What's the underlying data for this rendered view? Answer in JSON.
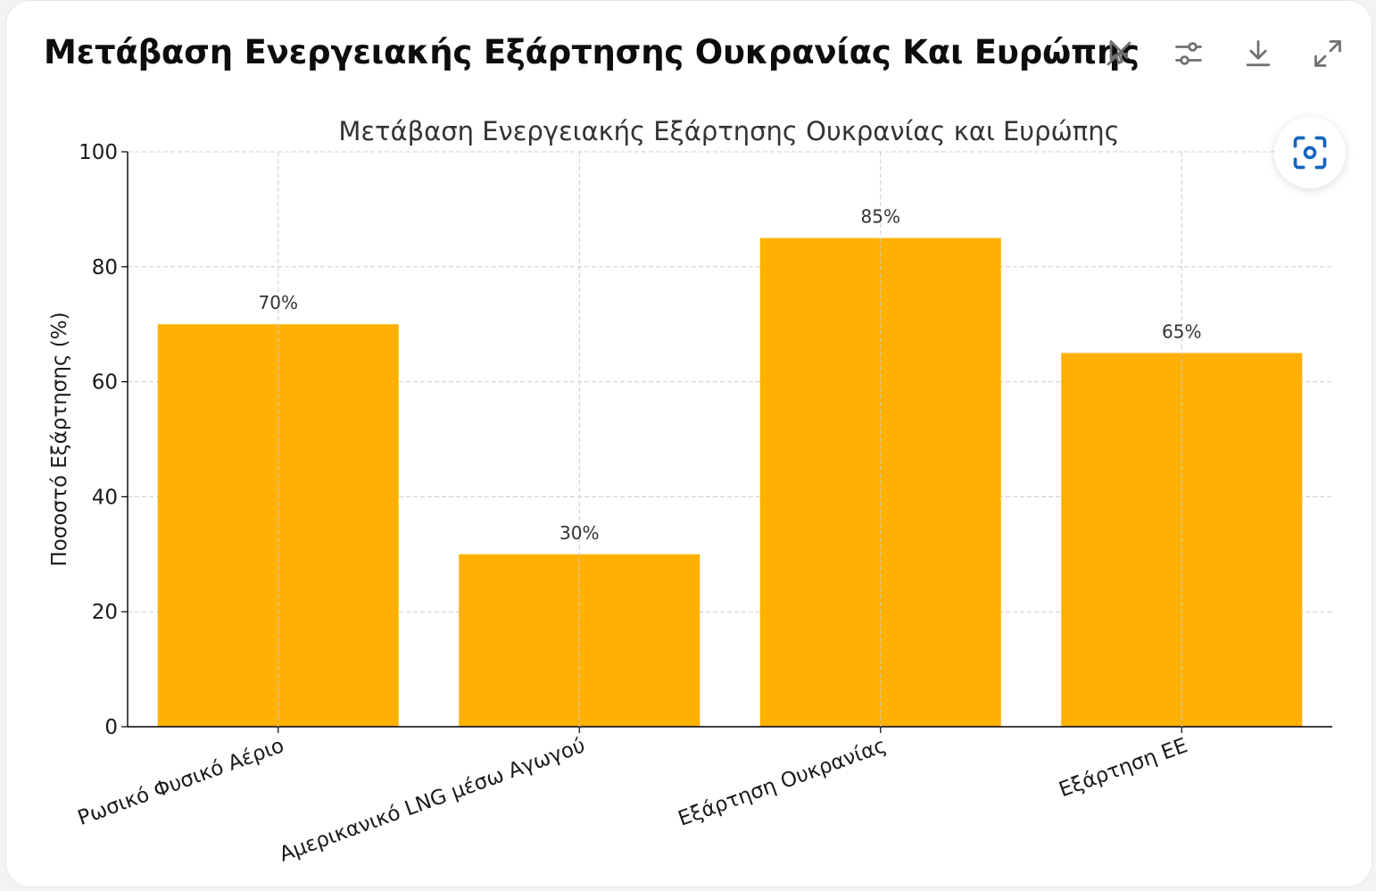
{
  "header": {
    "title": "Μετάβαση Ενεργειακής Εξάρτησης Ουκρανίας Και Ευρώπης"
  },
  "toolbar": {
    "icons": [
      "disable-interactive-icon",
      "settings-sliders-icon",
      "download-icon",
      "expand-icon"
    ]
  },
  "focus_icon": "screenshot-focus-icon",
  "colors": {
    "bar": "#FFB000",
    "grid": "#cccccc",
    "axis": "#000000",
    "accent": "#1565c0",
    "icon": "#707070"
  },
  "chart_data": {
    "type": "bar",
    "title": "Μετάβαση Ενεργειακής Εξάρτησης Ουκρανίας και Ευρώπης",
    "ylabel": "Ποσοστό Εξάρτησης (%)",
    "xlabel": "",
    "categories": [
      "Ρωσικό Φυσικό Αέριο",
      "Αμερικανικό LNG μέσω Αγωγού",
      "Εξάρτηση Ουκρανίας",
      "Εξάρτηση ΕΕ"
    ],
    "values": [
      70,
      30,
      85,
      65
    ],
    "data_labels": [
      "70%",
      "30%",
      "85%",
      "65%"
    ],
    "ylim": [
      0,
      100
    ],
    "yticks": [
      0,
      20,
      40,
      60,
      80,
      100
    ],
    "grid": true,
    "grid_style": "dashed"
  }
}
